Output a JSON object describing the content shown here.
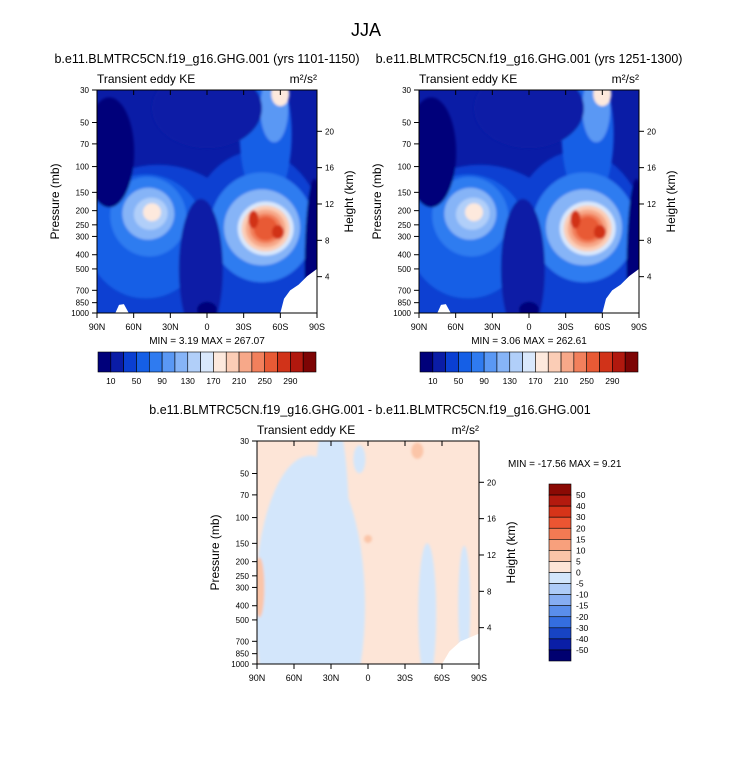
{
  "figure": {
    "title": "JJA",
    "diff_title": "b.e11.BLMTRC5CN.f19_g16.GHG.001 - b.e11.BLMTRC5CN.f19_g16.GHG.001"
  },
  "chart_data": [
    {
      "type": "heatmap",
      "title": "b.e11.BLMTRC5CN.f19_g16.GHG.001 (yrs 1101-1150)",
      "left_label": "Transient eddy KE",
      "units": "m²/s²",
      "ylabel": "Pressure (mb)",
      "y2label": "Height (km)",
      "stats": "MIN =  3.19  MAX = 267.07",
      "x_ticks": [
        "90N",
        "60N",
        "30N",
        "0",
        "30S",
        "60S",
        "90S"
      ],
      "y_ticks": [
        "30",
        "50",
        "70",
        "100",
        "150",
        "200",
        "250",
        "300",
        "400",
        "500",
        "700",
        "850",
        "1000"
      ],
      "y2_ticks": [
        "20",
        "16",
        "12",
        "8",
        "4"
      ],
      "colorbar": {
        "labels": [
          "10",
          "50",
          "90",
          "130",
          "170",
          "210",
          "250",
          "290"
        ],
        "colors": [
          "#00007a",
          "#0a1ca6",
          "#0a3fd2",
          "#155fe6",
          "#2f7bf0",
          "#5a98f4",
          "#86b4f7",
          "#b1cff9",
          "#d9e8fc",
          "#fde9dd",
          "#fbcdb6",
          "#f7a889",
          "#f2805c",
          "#e85a35",
          "#d13319",
          "#b1180e",
          "#7d0404"
        ]
      },
      "features": [
        {
          "name": "NH midlatitude jet",
          "lat": 45,
          "p": 200,
          "value": 180
        },
        {
          "name": "SH midlatitude jet",
          "lat": -50,
          "p": 270,
          "value": 267.07
        },
        {
          "name": "SH stratosphere",
          "lat": -60,
          "p": 30,
          "value": 150
        }
      ]
    },
    {
      "type": "heatmap",
      "title": "b.e11.BLMTRC5CN.f19_g16.GHG.001 (yrs 1251-1300)",
      "left_label": "Transient eddy KE",
      "units": "m²/s²",
      "ylabel": "Pressure (mb)",
      "y2label": "Height (km)",
      "stats": "MIN =  3.06  MAX = 262.61",
      "x_ticks": [
        "90N",
        "60N",
        "30N",
        "0",
        "30S",
        "60S",
        "90S"
      ],
      "y_ticks": [
        "30",
        "50",
        "70",
        "100",
        "150",
        "200",
        "250",
        "300",
        "400",
        "500",
        "700",
        "850",
        "1000"
      ],
      "y2_ticks": [
        "20",
        "16",
        "12",
        "8",
        "4"
      ],
      "colorbar": {
        "labels": [
          "10",
          "50",
          "90",
          "130",
          "170",
          "210",
          "250",
          "290"
        ],
        "colors": [
          "#00007a",
          "#0a1ca6",
          "#0a3fd2",
          "#155fe6",
          "#2f7bf0",
          "#5a98f4",
          "#86b4f7",
          "#b1cff9",
          "#d9e8fc",
          "#fde9dd",
          "#fbcdb6",
          "#f7a889",
          "#f2805c",
          "#e85a35",
          "#d13319",
          "#b1180e",
          "#7d0404"
        ]
      },
      "features": [
        {
          "name": "NH midlatitude jet",
          "lat": 45,
          "p": 200,
          "value": 178
        },
        {
          "name": "SH midlatitude jet",
          "lat": -50,
          "p": 270,
          "value": 262.61
        },
        {
          "name": "SH stratosphere",
          "lat": -60,
          "p": 30,
          "value": 148
        }
      ]
    },
    {
      "type": "heatmap",
      "title": "",
      "left_label": "Transient eddy KE",
      "units": "m²/s²",
      "ylabel": "Pressure (mb)",
      "y2label": "Height (km)",
      "stats": "MIN = -17.56  MAX =   9.21",
      "x_ticks": [
        "90N",
        "60N",
        "30N",
        "0",
        "30S",
        "60S",
        "90S"
      ],
      "y_ticks": [
        "30",
        "50",
        "70",
        "100",
        "150",
        "200",
        "250",
        "300",
        "400",
        "500",
        "700",
        "850",
        "1000"
      ],
      "y2_ticks": [
        "20",
        "16",
        "12",
        "8",
        "4"
      ],
      "colorbar": {
        "labels": [
          "50",
          "40",
          "30",
          "20",
          "15",
          "10",
          "5",
          "0",
          "-5",
          "-10",
          "-15",
          "-20",
          "-30",
          "-40",
          "-50"
        ],
        "colors": [
          "#8b0a04",
          "#b31a0e",
          "#d63419",
          "#ec5532",
          "#f37a53",
          "#f8a07c",
          "#fbc5a8",
          "#fde5d7",
          "#d3e6fb",
          "#aecbf7",
          "#86adf2",
          "#5a8eeb",
          "#346ee0",
          "#1744c4",
          "#0a1ea6",
          "#000070"
        ]
      }
    }
  ]
}
